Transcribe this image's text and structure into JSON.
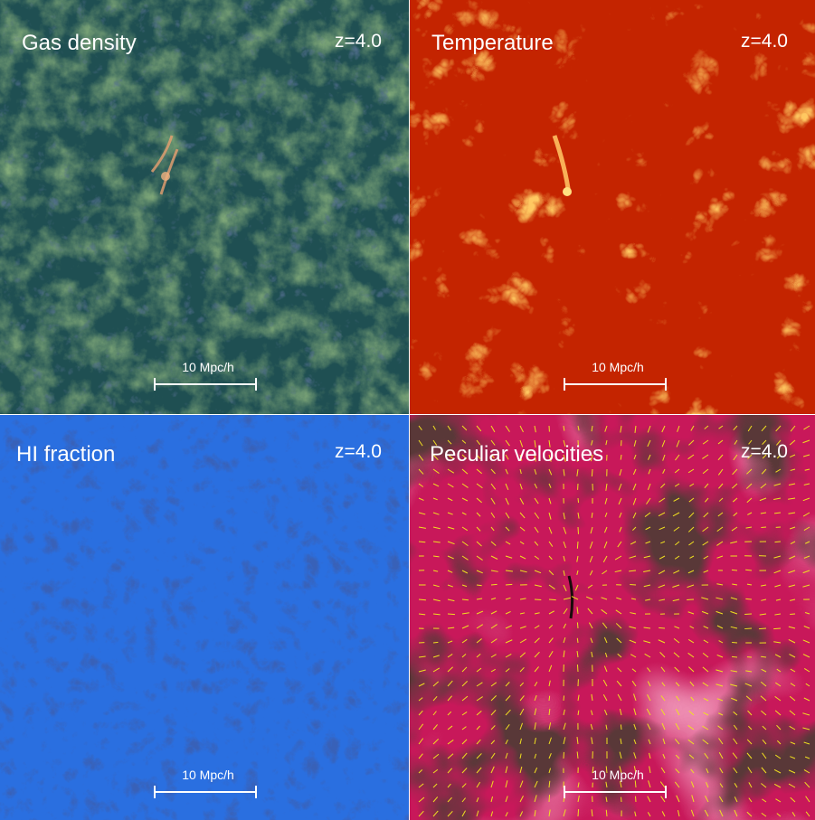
{
  "panels": [
    {
      "id": "gas-density",
      "title": "Gas density",
      "redshift": "z=4.0",
      "scale": "10 Mpc/h"
    },
    {
      "id": "temperature",
      "title": "Temperature",
      "redshift": "z=4.0",
      "scale": "10 Mpc/h"
    },
    {
      "id": "hi-fraction",
      "title": "HI fraction",
      "redshift": "z=4.0",
      "scale": "10 Mpc/h"
    },
    {
      "id": "peculiar-velocities",
      "title": "Peculiar velocities",
      "redshift": "z=4.0",
      "scale": "10 Mpc/h"
    }
  ],
  "colors": {
    "gas_density_bg": "#1f4f52",
    "gas_density_filament": "#6ab24a",
    "gas_density_peak": "#e8a070",
    "temperature_bg": "#c42400",
    "temperature_filament": "#ff9a20",
    "temperature_peak": "#ffe080",
    "hi_fraction_bg": "#2a6fe0",
    "hi_fraction_filament": "#0a1e7a",
    "velocity_bg": "#c8185a",
    "velocity_void": "#1a0a0a",
    "velocity_arrow": "#f0e020"
  }
}
